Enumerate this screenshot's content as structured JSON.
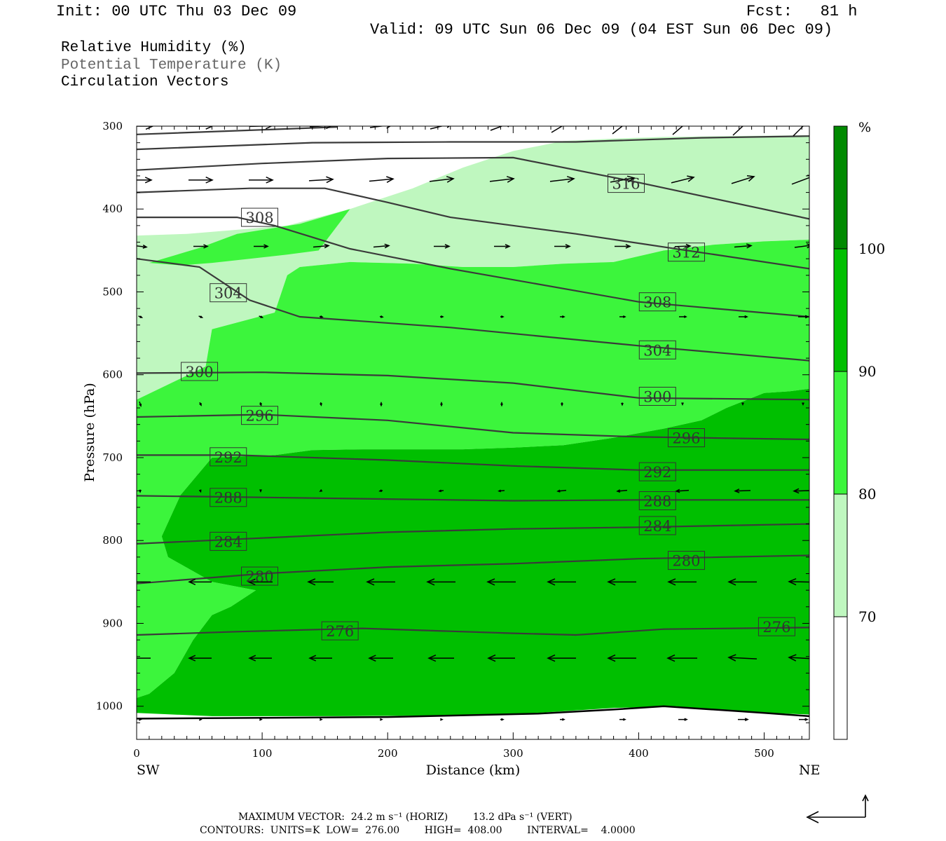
{
  "header": {
    "init": "Init: 00 UTC Thu 03 Dec 09",
    "fcst": "Fcst:   81 h",
    "valid": "Valid: 09 UTC Sun 06 Dec 09 (04 EST Sun 06 Dec 09)"
  },
  "legend": {
    "line1": "Relative Humidity (%)",
    "line2": "Potential Temperature (K)",
    "line3": "Circulation Vectors"
  },
  "footer": {
    "max_vector": "MAXIMUM VECTOR:  24.2 m s⁻¹ (HORIZ)        13.2 dPa s⁻¹ (VERT)",
    "contours": "CONTOURS:  UNITS=K  LOW=  276.00        HIGH=  408.00        INTERVAL=    4.0000"
  },
  "colors": {
    "rh_70_80": "#bff7bf",
    "rh_80_90": "#3cf53c",
    "rh_90_100": "#00bf00",
    "rh_100_plus": "#008a00",
    "theta_line": "#3a3a3a",
    "vector": "#000000"
  },
  "chart_data": {
    "type": "cross-section",
    "xlabel": "Distance (km)",
    "ylabel": "Pressure (hPa)",
    "xlim": [
      0,
      536
    ],
    "ylim": [
      1040,
      300
    ],
    "x_ticks": [
      0,
      100,
      200,
      300,
      400,
      500
    ],
    "y_ticks": [
      300,
      400,
      500,
      600,
      700,
      800,
      900,
      1000
    ],
    "x_end_labels": {
      "left": "SW",
      "right": "NE"
    },
    "colorbar": {
      "unit": "%",
      "levels": [
        70,
        80,
        90,
        100
      ],
      "bands": [
        {
          "range": "<70",
          "color": "#ffffff"
        },
        {
          "range": "70-80",
          "color": "#bff7bf"
        },
        {
          "range": "80-90",
          "color": "#3cf53c"
        },
        {
          "range": "90-100",
          "color": "#00bf00"
        },
        {
          "range": ">100",
          "color": "#008a00"
        }
      ]
    },
    "rh_regions": [
      {
        "band": "70-80",
        "points": [
          [
            0,
            432
          ],
          [
            40,
            430
          ],
          [
            120,
            420
          ],
          [
            170,
            400
          ],
          [
            220,
            375
          ],
          [
            260,
            350
          ],
          [
            300,
            330
          ],
          [
            340,
            318
          ],
          [
            380,
            315
          ],
          [
            420,
            313
          ],
          [
            470,
            312
          ],
          [
            536,
            311
          ],
          [
            536,
            437
          ],
          [
            500,
            439
          ],
          [
            460,
            443
          ],
          [
            420,
            450
          ],
          [
            380,
            464
          ],
          [
            340,
            466
          ],
          [
            300,
            470
          ],
          [
            260,
            470
          ],
          [
            220,
            466
          ],
          [
            170,
            464
          ],
          [
            130,
            470
          ],
          [
            120,
            480
          ],
          [
            110,
            525
          ],
          [
            60,
            545
          ],
          [
            55,
            590
          ],
          [
            0,
            630
          ]
        ]
      },
      {
        "band": "80-90",
        "points": [
          [
            0,
            630
          ],
          [
            55,
            590
          ],
          [
            60,
            545
          ],
          [
            110,
            525
          ],
          [
            120,
            480
          ],
          [
            130,
            470
          ],
          [
            170,
            464
          ],
          [
            220,
            466
          ],
          [
            260,
            470
          ],
          [
            300,
            470
          ],
          [
            340,
            466
          ],
          [
            380,
            464
          ],
          [
            420,
            450
          ],
          [
            460,
            443
          ],
          [
            500,
            439
          ],
          [
            536,
            437
          ],
          [
            536,
            617
          ],
          [
            520,
            620
          ],
          [
            500,
            622
          ],
          [
            470,
            640
          ],
          [
            450,
            655
          ],
          [
            420,
            665
          ],
          [
            380,
            676
          ],
          [
            340,
            685
          ],
          [
            300,
            688
          ],
          [
            260,
            690
          ],
          [
            220,
            690
          ],
          [
            180,
            690
          ],
          [
            140,
            691
          ],
          [
            110,
            697
          ],
          [
            60,
            700
          ],
          [
            35,
            745
          ],
          [
            20,
            795
          ],
          [
            25,
            820
          ],
          [
            60,
            850
          ],
          [
            95,
            860
          ],
          [
            90,
            865
          ],
          [
            75,
            880
          ],
          [
            60,
            890
          ],
          [
            45,
            920
          ],
          [
            30,
            960
          ],
          [
            10,
            985
          ],
          [
            0,
            990
          ]
        ]
      },
      {
        "band": "80-90",
        "points": [
          [
            10,
            465
          ],
          [
            50,
            447
          ],
          [
            80,
            430
          ],
          [
            130,
            418
          ],
          [
            170,
            400
          ],
          [
            155,
            430
          ],
          [
            145,
            450
          ],
          [
            120,
            455
          ],
          [
            90,
            460
          ],
          [
            60,
            465
          ],
          [
            35,
            468
          ]
        ]
      },
      {
        "band": "90-100",
        "points": [
          [
            25,
            820
          ],
          [
            20,
            795
          ],
          [
            35,
            745
          ],
          [
            60,
            700
          ],
          [
            110,
            697
          ],
          [
            140,
            691
          ],
          [
            180,
            690
          ],
          [
            220,
            690
          ],
          [
            260,
            690
          ],
          [
            300,
            688
          ],
          [
            340,
            685
          ],
          [
            380,
            676
          ],
          [
            420,
            665
          ],
          [
            450,
            655
          ],
          [
            470,
            640
          ],
          [
            500,
            622
          ],
          [
            520,
            620
          ],
          [
            536,
            617
          ],
          [
            536,
            1010
          ],
          [
            470,
            1006
          ],
          [
            430,
            1000
          ],
          [
            380,
            1002
          ],
          [
            320,
            1008
          ],
          [
            260,
            1011
          ],
          [
            160,
            1012
          ],
          [
            60,
            1012
          ],
          [
            0,
            1008
          ],
          [
            0,
            990
          ],
          [
            10,
            985
          ],
          [
            30,
            960
          ],
          [
            45,
            920
          ],
          [
            60,
            890
          ],
          [
            75,
            880
          ],
          [
            90,
            865
          ],
          [
            95,
            860
          ],
          [
            60,
            850
          ]
        ]
      }
    ],
    "theta_contours": [
      {
        "value": 276,
        "points": [
          [
            0,
            914
          ],
          [
            80,
            910
          ],
          [
            180,
            906
          ],
          [
            300,
            912
          ],
          [
            350,
            914
          ],
          [
            420,
            907
          ],
          [
            536,
            905
          ]
        ],
        "labels": [
          [
            162,
            909
          ],
          [
            510,
            904
          ]
        ]
      },
      {
        "value": 280,
        "points": [
          [
            0,
            852
          ],
          [
            100,
            840
          ],
          [
            200,
            832
          ],
          [
            300,
            828
          ],
          [
            400,
            822
          ],
          [
            536,
            818
          ]
        ],
        "labels": [
          [
            98,
            843
          ],
          [
            438,
            824
          ]
        ]
      },
      {
        "value": 284,
        "points": [
          [
            0,
            804
          ],
          [
            100,
            797
          ],
          [
            200,
            790
          ],
          [
            300,
            786
          ],
          [
            400,
            784
          ],
          [
            536,
            780
          ]
        ],
        "labels": [
          [
            73,
            801
          ],
          [
            415,
            782
          ]
        ]
      },
      {
        "value": 288,
        "points": [
          [
            0,
            746
          ],
          [
            100,
            748
          ],
          [
            200,
            750
          ],
          [
            300,
            752
          ],
          [
            400,
            751
          ],
          [
            536,
            751
          ]
        ],
        "labels": [
          [
            73,
            748
          ],
          [
            415,
            752
          ]
        ]
      },
      {
        "value": 292,
        "points": [
          [
            0,
            697
          ],
          [
            80,
            697
          ],
          [
            200,
            703
          ],
          [
            300,
            710
          ],
          [
            400,
            715
          ],
          [
            536,
            715
          ]
        ],
        "labels": [
          [
            73,
            699
          ],
          [
            415,
            717
          ]
        ]
      },
      {
        "value": 296,
        "points": [
          [
            0,
            651
          ],
          [
            100,
            648
          ],
          [
            200,
            655
          ],
          [
            300,
            670
          ],
          [
            400,
            675
          ],
          [
            536,
            678
          ]
        ],
        "labels": [
          [
            98,
            649
          ],
          [
            438,
            676
          ]
        ]
      },
      {
        "value": 300,
        "points": [
          [
            0,
            598
          ],
          [
            100,
            597
          ],
          [
            200,
            601
          ],
          [
            300,
            610
          ],
          [
            400,
            628
          ],
          [
            536,
            630
          ]
        ],
        "labels": [
          [
            50,
            596
          ],
          [
            415,
            626
          ]
        ]
      },
      {
        "value": 304,
        "points": [
          [
            0,
            460
          ],
          [
            50,
            470
          ],
          [
            90,
            510
          ],
          [
            130,
            530
          ],
          [
            250,
            543
          ],
          [
            400,
            565
          ],
          [
            536,
            583
          ]
        ],
        "labels": [
          [
            73,
            501
          ],
          [
            415,
            570
          ]
        ]
      },
      {
        "value": 308,
        "points": [
          [
            0,
            410
          ],
          [
            80,
            410
          ],
          [
            110,
            420
          ],
          [
            170,
            448
          ],
          [
            250,
            472
          ],
          [
            400,
            512
          ],
          [
            536,
            530
          ]
        ],
        "labels": [
          [
            98,
            410
          ],
          [
            415,
            512
          ]
        ]
      },
      {
        "value": 312,
        "points": [
          [
            0,
            380
          ],
          [
            90,
            375
          ],
          [
            150,
            375
          ],
          [
            200,
            392
          ],
          [
            250,
            410
          ],
          [
            350,
            430
          ],
          [
            536,
            472
          ]
        ],
        "labels": [
          [
            438,
            452
          ]
        ]
      },
      {
        "value": 316,
        "points": [
          [
            0,
            353
          ],
          [
            100,
            345
          ],
          [
            200,
            339
          ],
          [
            300,
            338
          ],
          [
            400,
            368
          ],
          [
            536,
            412
          ]
        ],
        "labels": [
          [
            390,
            369
          ]
        ]
      },
      {
        "value": 320,
        "points": [
          [
            0,
            328
          ],
          [
            140,
            320
          ],
          [
            250,
            319
          ],
          [
            350,
            319
          ],
          [
            450,
            314
          ],
          [
            536,
            312
          ]
        ],
        "labels": []
      },
      {
        "value": 324,
        "points": [
          [
            0,
            310
          ],
          [
            90,
            305
          ],
          [
            160,
            301
          ]
        ],
        "labels": []
      }
    ],
    "surface": [
      [
        0,
        1015
      ],
      [
        100,
        1014
      ],
      [
        200,
        1013
      ],
      [
        320,
        1009
      ],
      [
        380,
        1004
      ],
      [
        420,
        1000
      ],
      [
        500,
        1008
      ],
      [
        536,
        1012
      ]
    ]
  }
}
